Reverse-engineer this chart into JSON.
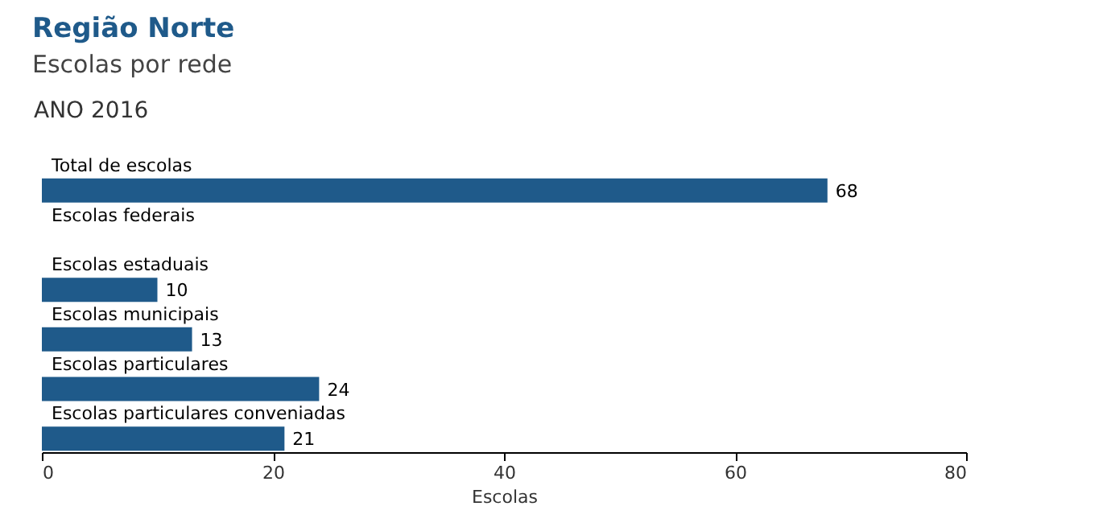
{
  "chart_data": {
    "type": "bar",
    "orientation": "horizontal",
    "title": "Região Norte",
    "subtitle": "Escolas por rede",
    "annotations": [
      "ANO 2016"
    ],
    "categories": [
      "Total de escolas",
      "Escolas federais",
      "Escolas estaduais",
      "Escolas municipais",
      "Escolas particulares",
      "Escolas particulares conveniadas"
    ],
    "values": [
      68,
      null,
      10,
      13,
      24,
      21
    ],
    "color": "#1f5a8a",
    "xlim": [
      0,
      80
    ],
    "xticks": [
      0,
      20,
      40,
      60,
      80
    ],
    "xlabel": "Escolas",
    "data_labels": true,
    "grid": false
  }
}
